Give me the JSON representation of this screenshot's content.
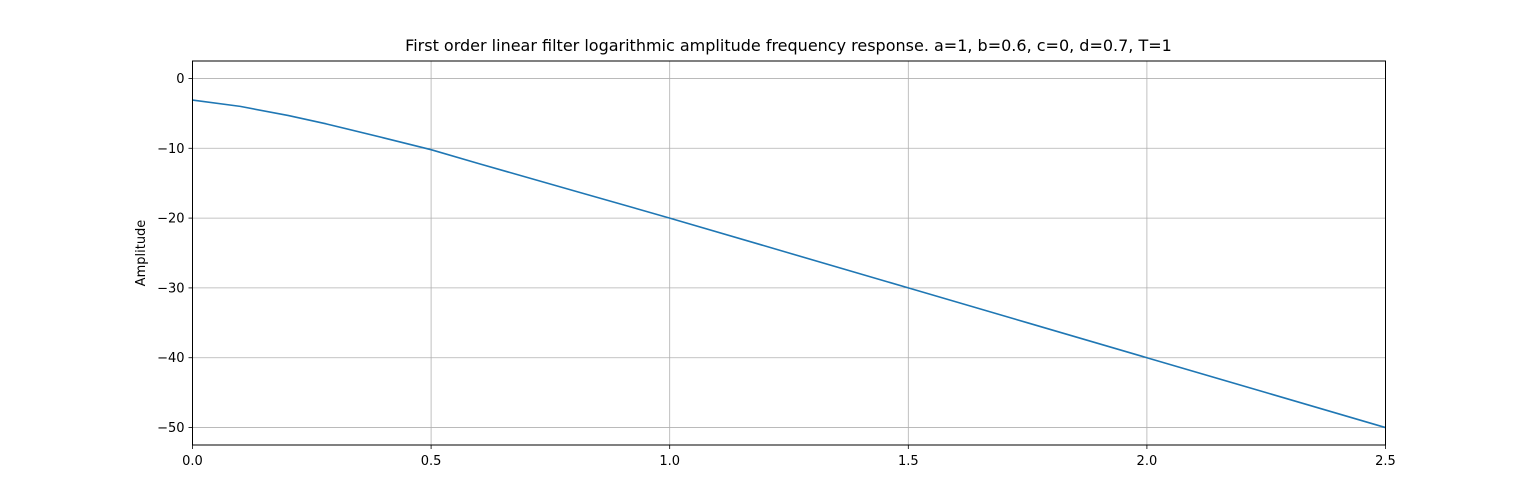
{
  "chart_data": {
    "type": "line",
    "title": "First order linear filter logarithmic amplitude frequency response. a=1, b=0.6, c=0, d=0.7, T=1",
    "xlabel": "",
    "ylabel": "Amplitude",
    "xlim": [
      0,
      2.5
    ],
    "ylim": [
      -52.5,
      2.5
    ],
    "grid": true,
    "line_color": "#1f77b4",
    "xticks": [
      0,
      0.5,
      1,
      1.5,
      2,
      2.5
    ],
    "xtick_labels": [
      "0.0",
      "0.5",
      "1.0",
      "1.5",
      "2.0",
      "2.5"
    ],
    "yticks": [
      0,
      -10,
      -20,
      -30,
      -40,
      -50
    ],
    "ytick_labels": [
      "0",
      "−10",
      "−20",
      "−30",
      "−40",
      "−50"
    ],
    "series": [
      {
        "x": [
          0.0,
          0.1,
          0.2,
          0.28,
          0.4,
          0.5,
          0.6,
          0.8,
          1.0,
          1.25,
          1.5,
          1.75,
          2.0,
          2.25,
          2.5
        ],
        "y": [
          -3.1,
          -4.0,
          -5.3,
          -6.5,
          -8.5,
          -10.2,
          -12.2,
          -16.1,
          -20.0,
          -25.0,
          -30.0,
          -35.0,
          -40.0,
          -45.0,
          -50.0
        ]
      }
    ]
  }
}
